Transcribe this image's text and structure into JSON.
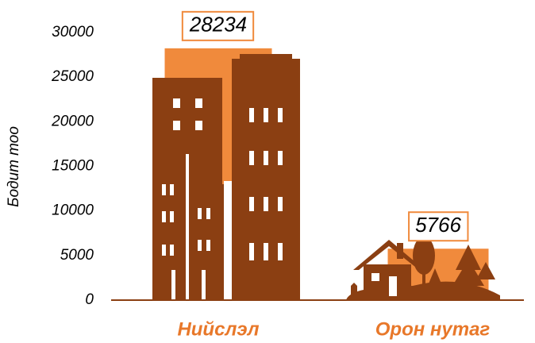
{
  "chart_data": {
    "type": "bar",
    "ylabel": "Бодит тоо",
    "categories": [
      "Нийслэл",
      "Орон нутаг"
    ],
    "values": [
      28234,
      5766
    ],
    "color": "#f08a3c",
    "ylim": [
      0,
      30000
    ],
    "yticks": [
      0,
      5000,
      10000,
      15000,
      20000,
      25000,
      30000
    ]
  }
}
